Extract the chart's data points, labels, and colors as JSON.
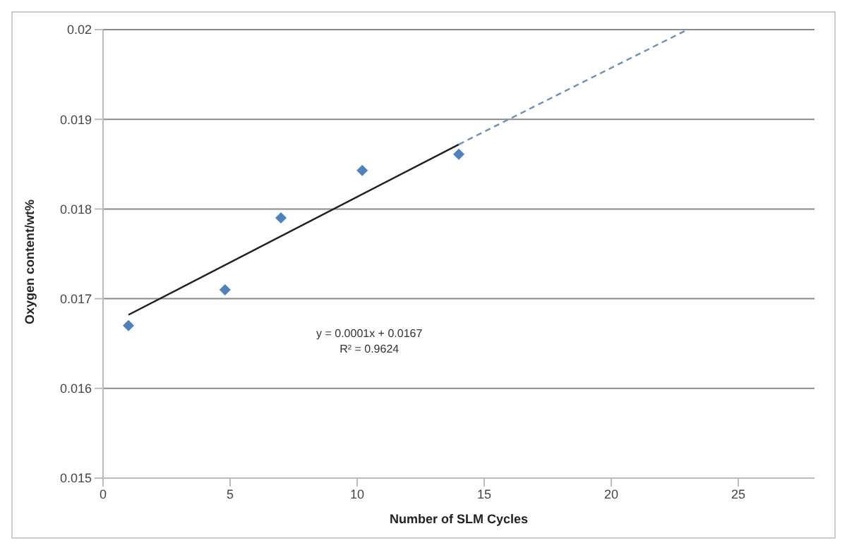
{
  "chart_data": {
    "type": "scatter",
    "xlabel": "Number of SLM Cycles",
    "ylabel": "Oxygen content/wt%",
    "xlim": [
      0,
      28
    ],
    "xticks": [
      0,
      5,
      10,
      15,
      20,
      25
    ],
    "ylim": [
      0.015,
      0.02
    ],
    "yticks": [
      0.015,
      0.016,
      0.017,
      0.018,
      0.019,
      0.02
    ],
    "grid": "y",
    "marker": "diamond",
    "x": [
      1,
      4.8,
      7,
      10.2,
      14
    ],
    "series": [
      {
        "color": "#4f81bd",
        "values": [
          0.0167,
          0.0171,
          0.0179,
          0.01843,
          0.01861
        ]
      },
      {
        "type": "line",
        "color": "#1f1f1f",
        "x": [
          1,
          14
        ],
        "values": [
          0.01682,
          0.01872
        ],
        "line_style": "solid",
        "marker": "none"
      },
      {
        "type": "line",
        "color": "#6f8fb3",
        "x": [
          14,
          23
        ],
        "values": [
          0.01872,
          0.02
        ],
        "line_style": "dashed",
        "marker": "none"
      }
    ],
    "annotations": [
      "y = 0.0001x + 0.0167",
      "R² = 0.9624"
    ]
  }
}
